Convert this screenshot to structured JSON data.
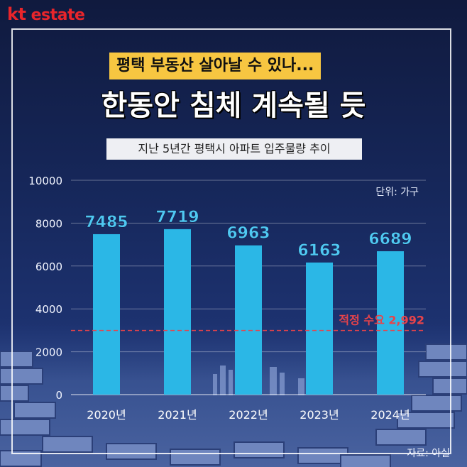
{
  "logo": {
    "kt": "kt",
    "estate": "estate"
  },
  "banner": {
    "subtitle": "평택 부동산 살아날 수 있나...",
    "title": "한동안 침체 계속될 듯"
  },
  "chart_data": {
    "type": "bar",
    "title": "지난 5년간 평택시 아파트 입주물량 추이",
    "unit": "단위: 가구",
    "categories": [
      "2020년",
      "2021년",
      "2022년",
      "2023년",
      "2024년"
    ],
    "values": [
      7485,
      7719,
      6963,
      6163,
      6689
    ],
    "value_labels": [
      "7485",
      "7719",
      "6963",
      "6163",
      "6689"
    ],
    "ylim": [
      0,
      10000
    ],
    "yticks": [
      10000,
      8000,
      6000,
      4000,
      2000,
      0
    ],
    "grid": true,
    "reference_line": {
      "value": 2992,
      "label": "적정 수요 2,992",
      "color": "#e8434a"
    },
    "bar_color": "#2bb7e6",
    "label_color": "#4fc8f2"
  },
  "source": "자료: 아실"
}
